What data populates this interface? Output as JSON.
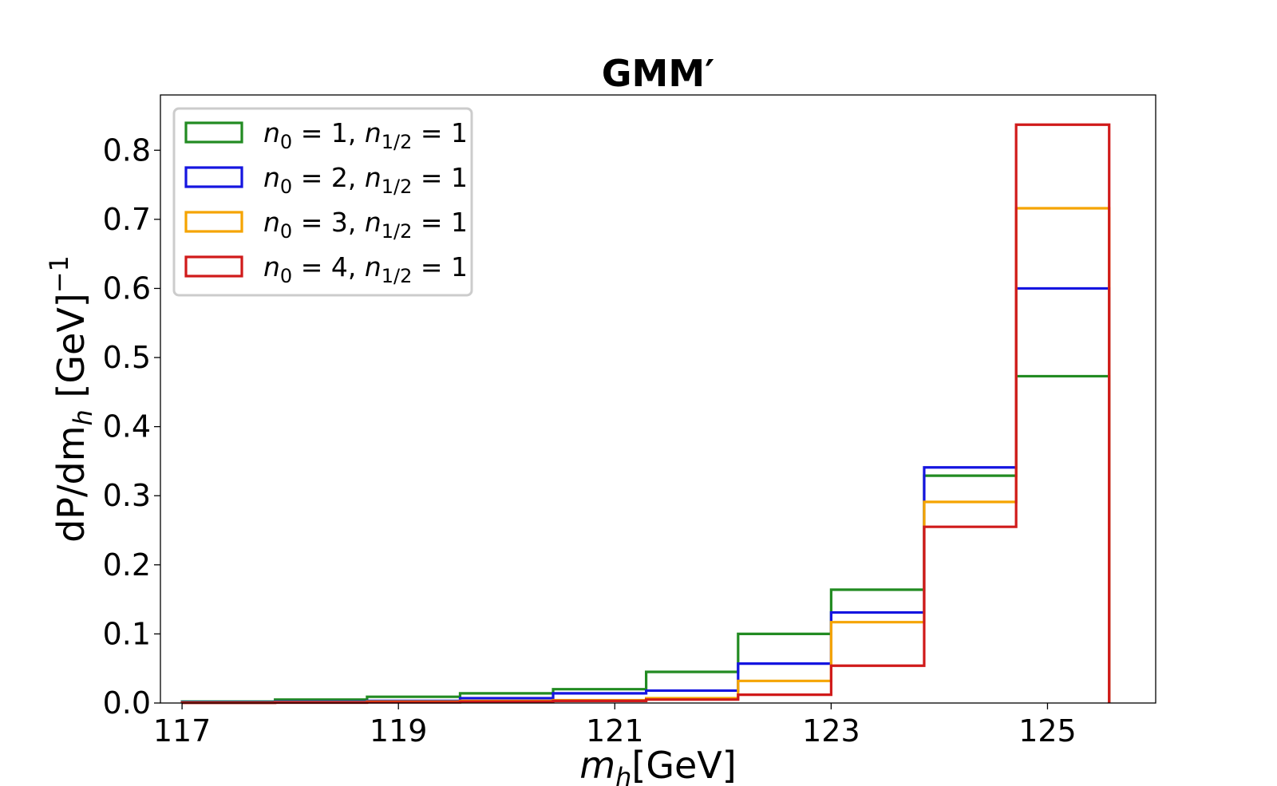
{
  "chart_data": {
    "type": "histogram-step",
    "title": "GMM′",
    "xlabel": "m_h[GeV]",
    "ylabel": "dP/dm_h [GeV]^−1",
    "xlim": [
      116.8,
      126.0
    ],
    "ylim": [
      0.0,
      0.88
    ],
    "xticks": [
      117,
      119,
      121,
      123,
      125
    ],
    "xtick_labels": [
      "117",
      "119",
      "121",
      "123",
      "125"
    ],
    "yticks": [
      0.0,
      0.1,
      0.2,
      0.3,
      0.4,
      0.5,
      0.6,
      0.7,
      0.8
    ],
    "ytick_labels": [
      "0.0",
      "0.1",
      "0.2",
      "0.3",
      "0.4",
      "0.5",
      "0.6",
      "0.7",
      "0.8"
    ],
    "bin_edges": [
      117.0,
      117.86,
      118.71,
      119.57,
      120.43,
      121.29,
      122.14,
      123.0,
      123.86,
      124.71,
      125.57
    ],
    "legend_position": "upper left",
    "grid": false,
    "series": [
      {
        "name": "n_0 = 1, n_1/2 = 1",
        "color": "#228B22",
        "values": [
          0.002,
          0.005,
          0.009,
          0.014,
          0.02,
          0.045,
          0.1,
          0.164,
          0.329,
          0.473
        ]
      },
      {
        "name": "n_0 = 2, n_1/2 = 1",
        "color": "#1515e0",
        "values": [
          0.001,
          0.002,
          0.003,
          0.007,
          0.014,
          0.018,
          0.057,
          0.131,
          0.341,
          0.6
        ]
      },
      {
        "name": "n_0 = 3, n_1/2 = 1",
        "color": "#f5a400",
        "values": [
          0.0005,
          0.001,
          0.002,
          0.003,
          0.004,
          0.007,
          0.032,
          0.117,
          0.291,
          0.716
        ]
      },
      {
        "name": "n_0 = 4, n_1/2 = 1",
        "color": "#d01a1a",
        "values": [
          0.0003,
          0.0005,
          0.001,
          0.002,
          0.003,
          0.005,
          0.012,
          0.054,
          0.255,
          0.837
        ]
      }
    ]
  }
}
